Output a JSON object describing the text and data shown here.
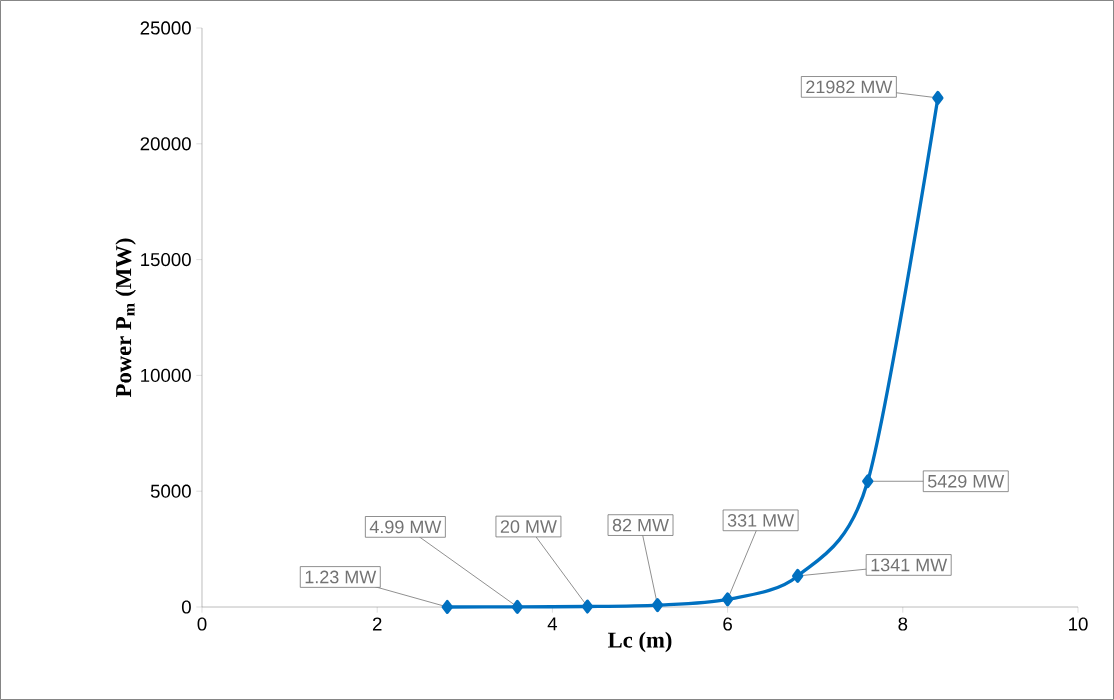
{
  "chart_data": {
    "type": "line",
    "xlabel": "Lc (m)",
    "ylabel": "Power P$_{m}$ (MW)",
    "x": [
      2.8,
      3.6,
      4.4,
      5.2,
      6.0,
      6.8,
      7.6,
      8.4
    ],
    "series": [
      {
        "color": "#0070c0",
        "values": [
          1.23,
          4.99,
          20,
          82,
          331,
          1341,
          5429,
          21982
        ],
        "value_labels": [
          "1.23 MW",
          "4.99 MW",
          "20 MW",
          "82 MW",
          "331 MW",
          "1341 MW",
          "5429 MW",
          "21982 MW"
        ]
      }
    ],
    "xlim": [
      0,
      10
    ],
    "ylim": [
      0,
      25000
    ],
    "xticks": [
      0,
      2,
      4,
      6,
      8,
      10
    ],
    "yticks": [
      0,
      5000,
      10000,
      15000,
      20000,
      25000
    ],
    "marker": "diamond",
    "line_style": "solid",
    "grid": false
  }
}
